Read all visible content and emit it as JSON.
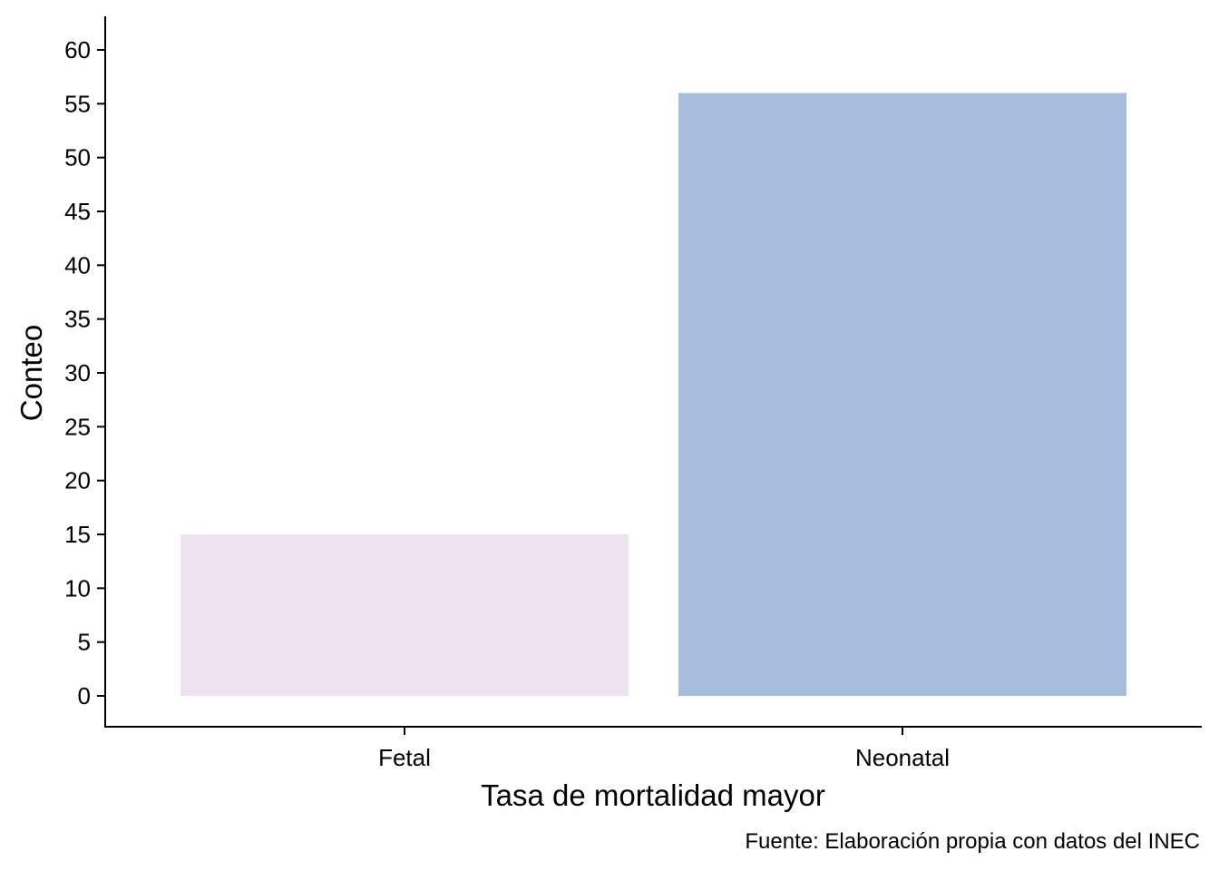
{
  "chart_data": {
    "type": "bar",
    "categories": [
      "Fetal",
      "Neonatal"
    ],
    "values": [
      15,
      56
    ],
    "colors": [
      "#ece2f0",
      "#a6bddb"
    ],
    "xlabel": "Tasa de mortalidad mayor",
    "ylabel": "Conteo",
    "caption": "Fuente: Elaboración propia con datos del INEC",
    "ylim": [
      0,
      60
    ],
    "yticks": [
      0,
      5,
      10,
      15,
      20,
      25,
      30,
      35,
      40,
      45,
      50,
      55,
      60
    ],
    "grid": false,
    "legend": "none"
  }
}
